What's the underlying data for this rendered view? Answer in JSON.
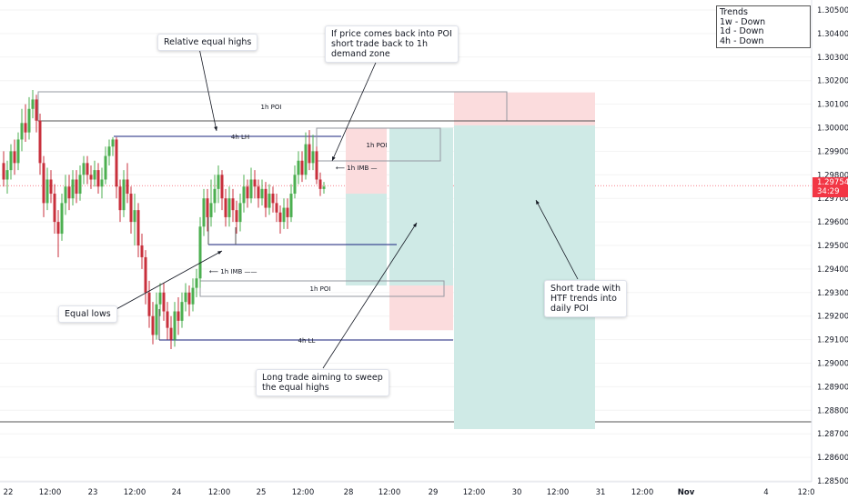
{
  "chart_data": {
    "type": "candlestick",
    "instrument_note": "",
    "y_axis": {
      "ticks": [
        "1.30500",
        "1.30400",
        "1.30300",
        "1.30200",
        "1.30100",
        "1.30000",
        "1.29900",
        "1.29800",
        "1.29700",
        "1.29600",
        "1.29500",
        "1.29400",
        "1.29300",
        "1.29200",
        "1.29100",
        "1.29000",
        "1.28900",
        "1.28800",
        "1.28700",
        "1.28600",
        "1.28500"
      ],
      "range": [
        1.2845,
        1.3053
      ]
    },
    "x_axis": {
      "ticks": [
        "22",
        "12:00",
        "23",
        "12:00",
        "24",
        "12:00",
        "25",
        "12:00",
        "28",
        "12:00",
        "29",
        "12:00",
        "30",
        "12:00",
        "31",
        "12:00",
        "Nov",
        "4",
        "12:0"
      ]
    },
    "current_price": {
      "value": 1.29754,
      "label": "1.29754",
      "countdown": "34:29",
      "color": "#f23645"
    },
    "colors": {
      "up": "#4caf50",
      "down": "#c8303c",
      "entry_zone": "#cfeae6",
      "stop_zone": "#fbdcdd",
      "level_line": "#1a237e",
      "box_line": "#9598a1"
    },
    "levels": [
      {
        "label": "1h POI",
        "from": "22",
        "to": "29",
        "price": 1.3014
      },
      {
        "label": "4h LH",
        "from": "23",
        "to": "25 12:00",
        "price": 1.2995
      },
      {
        "label": "1h POI",
        "from": "25 12:00",
        "to": "28",
        "price": 1.2995
      },
      {
        "label": "1h IMB",
        "from": "25 12:00",
        "to": "25 12:00",
        "price": 1.2983
      },
      {
        "label": "1h IMB",
        "from": "24",
        "to": "24",
        "price": 1.2941
      },
      {
        "label": "1h POI",
        "from": "24",
        "to": "28",
        "price": 1.2933
      },
      {
        "label": "4h LL",
        "from": "23 12:00",
        "to": "29",
        "price": 1.2907
      }
    ],
    "trades": [
      {
        "name": "Long trade",
        "entry": 1.2933,
        "target": 1.3,
        "stop": 1.2914
      },
      {
        "name": "Short trade",
        "entry": 1.3001,
        "target": 1.2872,
        "stop": 1.3015
      }
    ]
  },
  "annotations": {
    "relative_highs": "Relative equal highs",
    "poi_note": "If price comes back into POI\nshort trade back to 1h\ndemand zone",
    "equal_lows": "Equal lows",
    "long_trade": "Long trade aiming to sweep\nthe equal highs",
    "short_trade": "Short trade with\nHTF trends into\ndaily POI"
  },
  "trends_box": {
    "title": "Trends",
    "items": [
      "1w - Down",
      "1d - Down",
      "4h - Down"
    ]
  }
}
